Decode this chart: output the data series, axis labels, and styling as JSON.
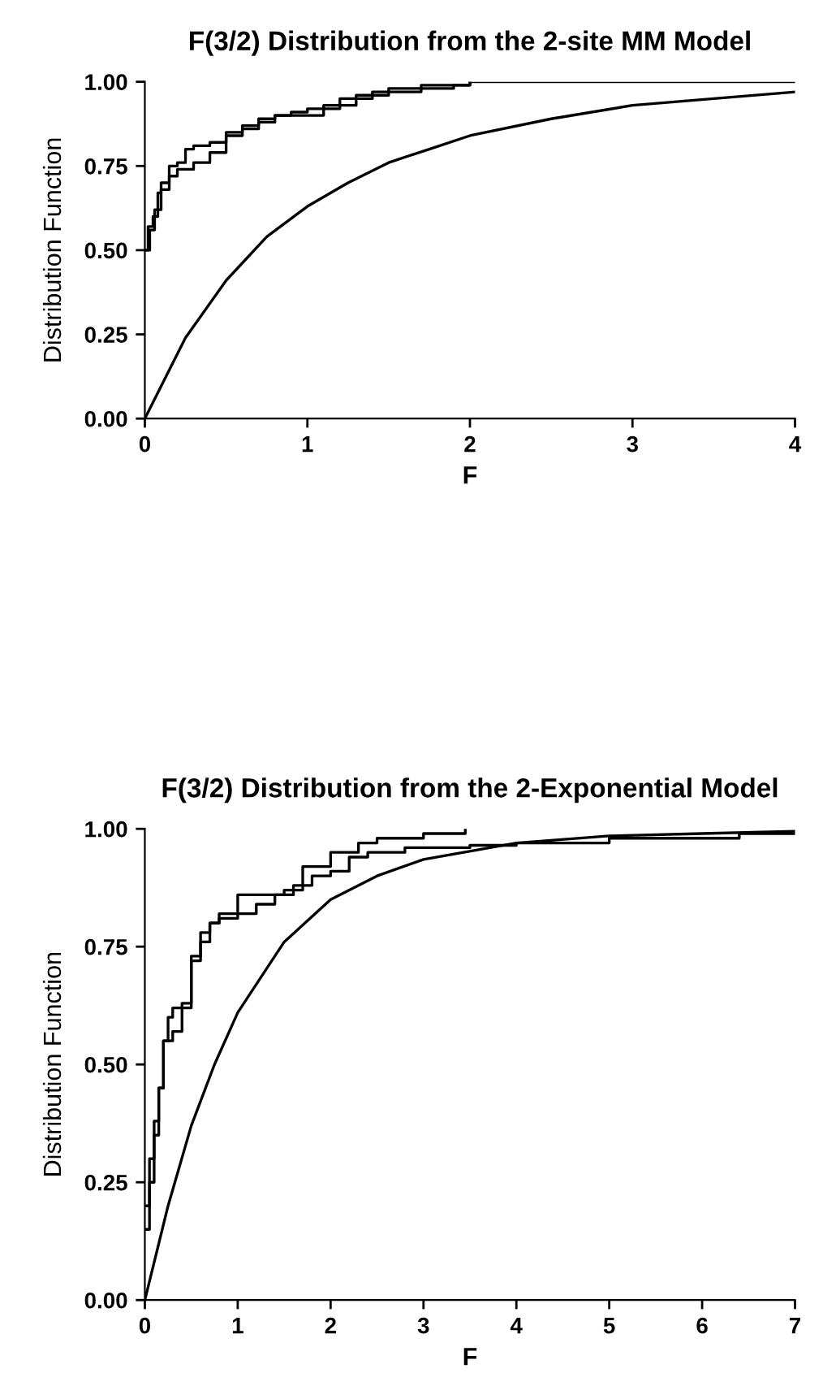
{
  "chart_data": [
    {
      "type": "line",
      "title": "F(3/2) Distribution from the 2-site MM Model",
      "xlabel": "F",
      "ylabel": "Distribution Function",
      "xlim": [
        0,
        4
      ],
      "ylim": [
        0,
        1
      ],
      "xticks": [
        0,
        1,
        2,
        3,
        4
      ],
      "yticks": [
        {
          "value": 0,
          "label": "0.00"
        },
        {
          "value": 0.25,
          "label": "0.25"
        },
        {
          "value": 0.5,
          "label": "0.50"
        },
        {
          "value": 0.75,
          "label": "0.75"
        },
        {
          "value": 1,
          "label": "1.00"
        }
      ],
      "grid": false,
      "legend": false,
      "series": [
        {
          "type": "step",
          "color": "#000000",
          "x": [
            0,
            0.02,
            0.05,
            0.08,
            0.1,
            0.15,
            0.2,
            0.25,
            0.3,
            0.4,
            0.5,
            0.6,
            0.7,
            0.8,
            0.9,
            1.0,
            1.1,
            1.2,
            1.3,
            1.4,
            1.5,
            1.7,
            2.0,
            4.0
          ],
          "values": [
            0.5,
            0.57,
            0.6,
            0.67,
            0.7,
            0.75,
            0.76,
            0.8,
            0.81,
            0.82,
            0.85,
            0.87,
            0.89,
            0.9,
            0.91,
            0.92,
            0.93,
            0.95,
            0.96,
            0.97,
            0.98,
            0.99,
            1.0,
            1.0
          ]
        },
        {
          "type": "step",
          "color": "#000000",
          "x": [
            0,
            0.03,
            0.06,
            0.1,
            0.15,
            0.2,
            0.3,
            0.4,
            0.5,
            0.6,
            0.7,
            0.8,
            1.1,
            1.2,
            1.3,
            1.4,
            1.5,
            1.7,
            1.9,
            2.0
          ],
          "values": [
            0.5,
            0.56,
            0.62,
            0.68,
            0.72,
            0.74,
            0.76,
            0.79,
            0.84,
            0.86,
            0.88,
            0.9,
            0.92,
            0.93,
            0.95,
            0.96,
            0.97,
            0.98,
            0.99,
            1.0
          ]
        },
        {
          "type": "line",
          "color": "#000000",
          "x": [
            0,
            0.25,
            0.5,
            0.75,
            1,
            1.25,
            1.5,
            1.75,
            2,
            2.5,
            3,
            3.5,
            4
          ],
          "values": [
            0,
            0.24,
            0.41,
            0.54,
            0.63,
            0.7,
            0.76,
            0.8,
            0.84,
            0.89,
            0.93,
            0.95,
            0.97
          ]
        }
      ]
    },
    {
      "type": "line",
      "title": "F(3/2) Distribution from the 2-Exponential Model",
      "xlabel": "F",
      "ylabel": "Distribution Function",
      "xlim": [
        0,
        7
      ],
      "ylim": [
        0,
        1
      ],
      "xticks": [
        0,
        1,
        2,
        3,
        4,
        5,
        6,
        7
      ],
      "yticks": [
        {
          "value": 0,
          "label": "0.00"
        },
        {
          "value": 0.25,
          "label": "0.25"
        },
        {
          "value": 0.5,
          "label": "0.50"
        },
        {
          "value": 0.75,
          "label": "0.75"
        },
        {
          "value": 1,
          "label": "1.00"
        }
      ],
      "grid": false,
      "legend": false,
      "series": [
        {
          "type": "step",
          "color": "#000000",
          "x": [
            0,
            0.05,
            0.1,
            0.15,
            0.2,
            0.25,
            0.3,
            0.4,
            0.5,
            0.6,
            0.7,
            0.8,
            1.0,
            1.5,
            1.7,
            2.0,
            2.3,
            2.5,
            3.0,
            3.45
          ],
          "values": [
            0.2,
            0.3,
            0.38,
            0.45,
            0.55,
            0.6,
            0.62,
            0.63,
            0.73,
            0.78,
            0.8,
            0.82,
            0.86,
            0.87,
            0.92,
            0.95,
            0.97,
            0.98,
            0.99,
            1.0
          ]
        },
        {
          "type": "step",
          "color": "#000000",
          "x": [
            0,
            0.05,
            0.1,
            0.15,
            0.2,
            0.3,
            0.4,
            0.5,
            0.6,
            0.7,
            0.8,
            1.0,
            1.2,
            1.4,
            1.6,
            1.8,
            2.0,
            2.2,
            2.4,
            2.8,
            3.5,
            4.0,
            5.0,
            6.4,
            7.0
          ],
          "values": [
            0.15,
            0.25,
            0.35,
            0.45,
            0.55,
            0.57,
            0.62,
            0.72,
            0.76,
            0.8,
            0.81,
            0.82,
            0.84,
            0.86,
            0.88,
            0.9,
            0.91,
            0.94,
            0.95,
            0.96,
            0.965,
            0.97,
            0.98,
            0.99,
            0.99
          ]
        },
        {
          "type": "line",
          "color": "#000000",
          "x": [
            0,
            0.25,
            0.5,
            0.75,
            1,
            1.5,
            2,
            2.5,
            3,
            4,
            5,
            6,
            7
          ],
          "values": [
            0,
            0.2,
            0.37,
            0.5,
            0.61,
            0.76,
            0.85,
            0.9,
            0.935,
            0.97,
            0.985,
            0.99,
            0.995
          ]
        }
      ]
    }
  ]
}
